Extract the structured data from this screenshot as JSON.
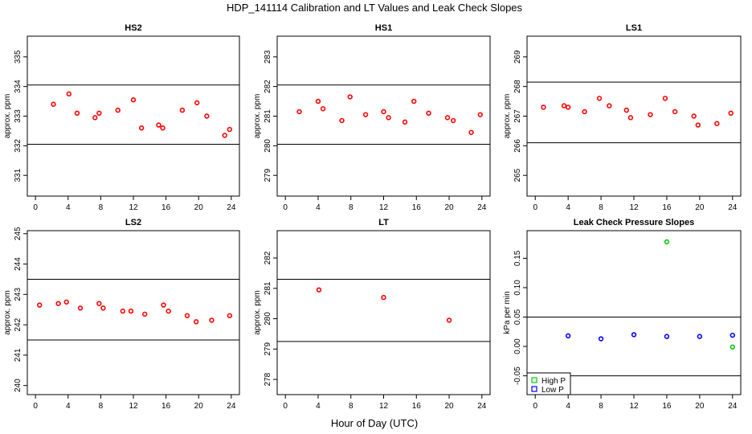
{
  "suptitle": "HDP_141114  Calibration and LT Values and Leak Check Slopes",
  "shared_xlabel": "Hour of Day (UTC)",
  "colors": {
    "red": "#ff0000",
    "green": "#00cc00",
    "blue": "#0000ff",
    "axis": "#000000"
  },
  "chart_data": [
    {
      "id": "hs2",
      "type": "scatter",
      "title": "HS2",
      "ylabel": "approx. ppm",
      "xlim": [
        -1,
        25
      ],
      "ylim": [
        330.3,
        335.7
      ],
      "xticks": [
        0,
        4,
        8,
        12,
        16,
        20,
        24
      ],
      "yticks": [
        331,
        332,
        333,
        334,
        335
      ],
      "hlines": [
        332.05,
        334.05
      ],
      "series": [
        {
          "name": "HS2",
          "color": "#ff0000",
          "marker": "circle",
          "x": [
            2.2,
            4.1,
            5.1,
            7.3,
            7.8,
            10.1,
            12.0,
            13.0,
            15.1,
            15.6,
            18.0,
            19.8,
            21.0,
            23.2,
            23.8
          ],
          "y": [
            333.4,
            333.75,
            333.1,
            332.95,
            333.1,
            333.2,
            333.55,
            332.6,
            332.7,
            332.6,
            333.2,
            333.45,
            333.0,
            332.35,
            332.55
          ]
        }
      ]
    },
    {
      "id": "hs1",
      "type": "scatter",
      "title": "HS1",
      "ylabel": "approx. ppm",
      "xlim": [
        -1,
        25
      ],
      "ylim": [
        278.3,
        283.7
      ],
      "xticks": [
        0,
        4,
        8,
        12,
        16,
        20,
        24
      ],
      "yticks": [
        279,
        280,
        281,
        282,
        283
      ],
      "hlines": [
        280.05,
        282.05
      ],
      "series": [
        {
          "name": "HS1",
          "color": "#ff0000",
          "marker": "circle",
          "x": [
            1.7,
            4.0,
            4.6,
            6.9,
            7.9,
            9.8,
            12.0,
            12.6,
            14.6,
            15.7,
            17.5,
            19.8,
            20.5,
            22.7,
            23.8
          ],
          "y": [
            281.15,
            281.5,
            281.25,
            280.85,
            281.65,
            281.05,
            281.15,
            280.95,
            280.8,
            281.5,
            281.1,
            280.95,
            280.85,
            280.45,
            281.05
          ]
        }
      ]
    },
    {
      "id": "ls1",
      "type": "scatter",
      "title": "LS1",
      "ylabel": "approx. ppm",
      "xlim": [
        -1,
        25
      ],
      "ylim": [
        264.3,
        269.7
      ],
      "xticks": [
        0,
        4,
        8,
        12,
        16,
        20,
        24
      ],
      "yticks": [
        265,
        266,
        267,
        268,
        269
      ],
      "hlines": [
        266.1,
        268.15
      ],
      "series": [
        {
          "name": "LS1",
          "color": "#ff0000",
          "marker": "circle",
          "x": [
            1.0,
            3.5,
            4.0,
            6.0,
            7.8,
            9.0,
            11.1,
            11.6,
            14.0,
            15.8,
            17.0,
            19.3,
            19.8,
            22.1,
            23.8
          ],
          "y": [
            267.3,
            267.35,
            267.3,
            267.15,
            267.6,
            267.35,
            267.2,
            266.95,
            267.05,
            267.6,
            267.15,
            267.0,
            266.7,
            266.75,
            267.1
          ]
        }
      ]
    },
    {
      "id": "ls2",
      "type": "scatter",
      "title": "LS2",
      "ylabel": "approx. ppm",
      "xlim": [
        -1,
        25
      ],
      "ylim": [
        239.7,
        245.1
      ],
      "xticks": [
        0,
        4,
        8,
        12,
        16,
        20,
        24
      ],
      "yticks": [
        240,
        241,
        242,
        243,
        244,
        245
      ],
      "hlines": [
        241.5,
        243.5
      ],
      "series": [
        {
          "name": "LS2",
          "color": "#ff0000",
          "marker": "circle",
          "x": [
            0.5,
            2.8,
            3.8,
            5.5,
            7.8,
            8.3,
            10.7,
            11.7,
            13.4,
            15.7,
            16.3,
            18.6,
            19.7,
            21.6,
            23.8
          ],
          "y": [
            242.65,
            242.7,
            242.75,
            242.55,
            242.7,
            242.55,
            242.45,
            242.45,
            242.35,
            242.65,
            242.45,
            242.3,
            242.1,
            242.15,
            242.3
          ]
        }
      ]
    },
    {
      "id": "lt",
      "type": "scatter",
      "title": "LT",
      "ylabel": "approx. ppm",
      "xlim": [
        -1,
        25
      ],
      "ylim": [
        277.5,
        282.9
      ],
      "xticks": [
        0,
        4,
        8,
        12,
        16,
        20,
        24
      ],
      "yticks": [
        278,
        279,
        280,
        281,
        282
      ],
      "hlines": [
        279.25,
        281.3
      ],
      "series": [
        {
          "name": "LT",
          "color": "#ff0000",
          "marker": "circle",
          "x": [
            4.1,
            12.0,
            20.0
          ],
          "y": [
            280.95,
            280.7,
            279.95
          ]
        }
      ]
    },
    {
      "id": "leak",
      "type": "scatter",
      "title": "Leak Check Pressure Slopes",
      "ylabel": "kPa per min",
      "xlim": [
        -1,
        25
      ],
      "ylim": [
        -0.082,
        0.197
      ],
      "xticks": [
        0,
        4,
        8,
        12,
        16,
        20,
        24
      ],
      "yticks": [
        -0.05,
        0.0,
        0.05,
        0.1,
        0.15
      ],
      "ytick_labels": [
        "-0.05",
        "0.00",
        "0.05",
        "0.10",
        "0.15"
      ],
      "hlines": [
        0.05,
        -0.05
      ],
      "legend": {
        "location": "bottom-left",
        "entries": [
          "High P",
          "Low P"
        ]
      },
      "series": [
        {
          "name": "High P",
          "color": "#00cc00",
          "marker": "circle",
          "x": [
            16.0,
            24.0
          ],
          "y": [
            0.178,
            -0.001
          ]
        },
        {
          "name": "Low P",
          "color": "#0000ff",
          "marker": "circle",
          "x": [
            4.0,
            8.0,
            12.0,
            16.0,
            20.0,
            24.0
          ],
          "y": [
            0.018,
            0.013,
            0.02,
            0.017,
            0.017,
            0.019
          ]
        }
      ]
    }
  ]
}
